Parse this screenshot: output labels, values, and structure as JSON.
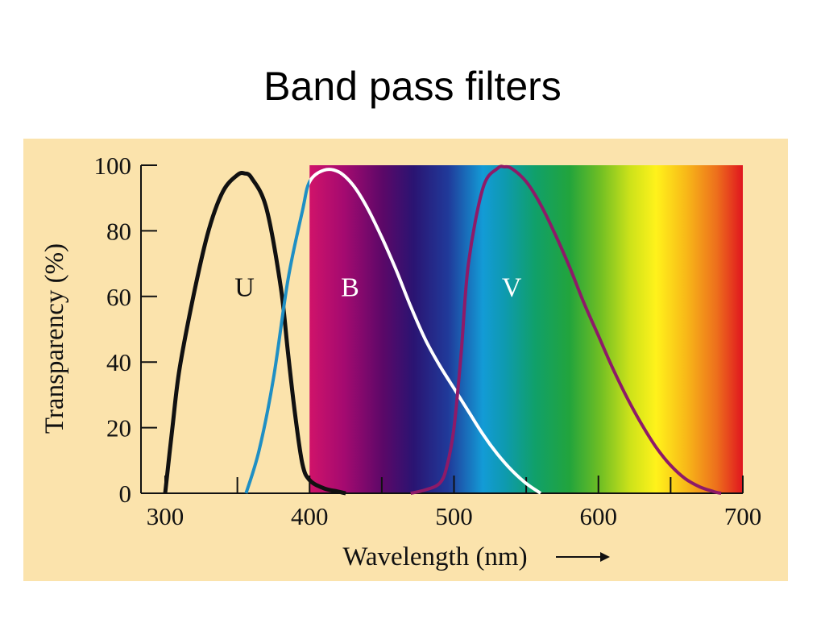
{
  "slide": {
    "title": "Band pass filters"
  },
  "chart_data": {
    "type": "line",
    "xlabel": "Wavelength (nm)",
    "ylabel": "Transparency (%)",
    "xlim": [
      300,
      700
    ],
    "ylim": [
      0,
      100
    ],
    "x_ticks": [
      300,
      400,
      500,
      600,
      700
    ],
    "x_minor_ticks": [
      350,
      450,
      550,
      650
    ],
    "y_ticks": [
      0,
      20,
      40,
      60,
      80,
      100
    ],
    "spectrum_band": {
      "x_start": 400,
      "x_end": 700
    },
    "colors": {
      "panel": "#fbe3ac",
      "U": "#111111",
      "B_uv": "#1f8fc4",
      "B": "#ffffff",
      "V": "#8e1a68"
    },
    "series": [
      {
        "name": "U",
        "label_at": [
          355,
          63
        ],
        "x": [
          300,
          305,
          310,
          320,
          330,
          340,
          350,
          355,
          360,
          370,
          380,
          385,
          390,
          395,
          400,
          410,
          420,
          425
        ],
        "values": [
          0,
          20,
          38,
          61,
          80,
          92,
          97,
          97.5,
          96,
          87,
          63,
          43,
          24,
          9,
          4,
          1.5,
          0.5,
          0
        ]
      },
      {
        "name": "B",
        "label_at": [
          428,
          63
        ],
        "x": [
          356,
          365,
          375,
          385,
          395,
          400,
          410,
          420,
          430,
          440,
          450,
          460,
          470,
          480,
          490,
          500,
          510,
          520,
          530,
          540,
          550,
          560
        ],
        "values": [
          0,
          13,
          35,
          65,
          86,
          95,
          98.5,
          98,
          94,
          87,
          78,
          68,
          57,
          47,
          39,
          32,
          25,
          18,
          12,
          7,
          3,
          0
        ]
      },
      {
        "name": "V",
        "label_at": [
          540,
          63
        ],
        "x": [
          470,
          480,
          490,
          495,
          500,
          505,
          510,
          520,
          530,
          535,
          540,
          550,
          560,
          570,
          580,
          590,
          600,
          610,
          620,
          630,
          640,
          650,
          660,
          670,
          680,
          685
        ],
        "values": [
          0,
          1,
          3,
          8,
          20,
          43,
          70,
          93,
          99,
          99.5,
          99,
          95,
          88,
          79,
          69,
          58,
          48,
          38,
          29,
          21,
          14,
          8.5,
          4.5,
          2,
          0.5,
          0
        ]
      }
    ]
  }
}
